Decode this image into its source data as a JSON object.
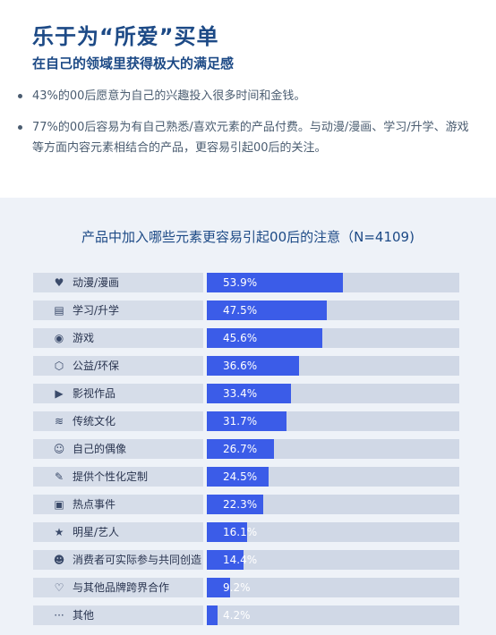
{
  "header": {
    "title": "乐于为“所爱”买单",
    "subtitle": "在自己的领域里获得极大的满足感"
  },
  "bullets": [
    "43%的00后愿意为自己的兴趣投入很多时间和金钱。",
    "77%的00后容易为有自己熟悉/喜欢元素的产品付费。与动漫/漫画、学习/升学、游戏等方面内容元素相结合的产品，更容易引起00后的关注。"
  ],
  "colors": {
    "bar": "#3b5ce8",
    "track": "#d0d8e6",
    "label_bg": "#d6dde9",
    "panel": "#eef2f8",
    "title": "#1d4a86"
  },
  "chart_data": {
    "type": "bar",
    "orientation": "horizontal",
    "title": "产品中加入哪些元素更容易引起00后的注意（N=4109)",
    "xlim": [
      0,
      100
    ],
    "unit": "%",
    "categories": [
      "动漫/漫画",
      "学习/升学",
      "游戏",
      "公益/环保",
      "影视作品",
      "传统文化",
      "自己的偶像",
      "提供个性化定制",
      "热点事件",
      "明星/艺人",
      "消费者可实际参与共同创造",
      "与其他品牌跨界合作",
      "其他"
    ],
    "values": [
      53.9,
      47.5,
      45.6,
      36.6,
      33.4,
      31.7,
      26.7,
      24.5,
      22.3,
      16.1,
      14.4,
      9.2,
      4.2
    ],
    "value_labels": [
      "53.9%",
      "47.5%",
      "45.6%",
      "36.6%",
      "33.4%",
      "31.7%",
      "26.7%",
      "24.5%",
      "22.3%",
      "16.1%",
      "14.4%",
      "9.2%",
      "4.2%"
    ],
    "icons": [
      "bear-icon",
      "book-icon",
      "gamepad-icon",
      "gift-icon",
      "play-circle-icon",
      "wifi-icon",
      "person-icon",
      "puzzle-icon",
      "calendar-icon",
      "star-person-icon",
      "group-icon",
      "handshake-icon",
      "more-dots-icon"
    ],
    "icon_glyphs": [
      "♥",
      "▤",
      "◉",
      "⬡",
      "▶",
      "≋",
      "☺",
      "✎",
      "▣",
      "★",
      "☻",
      "♡",
      "···"
    ]
  }
}
